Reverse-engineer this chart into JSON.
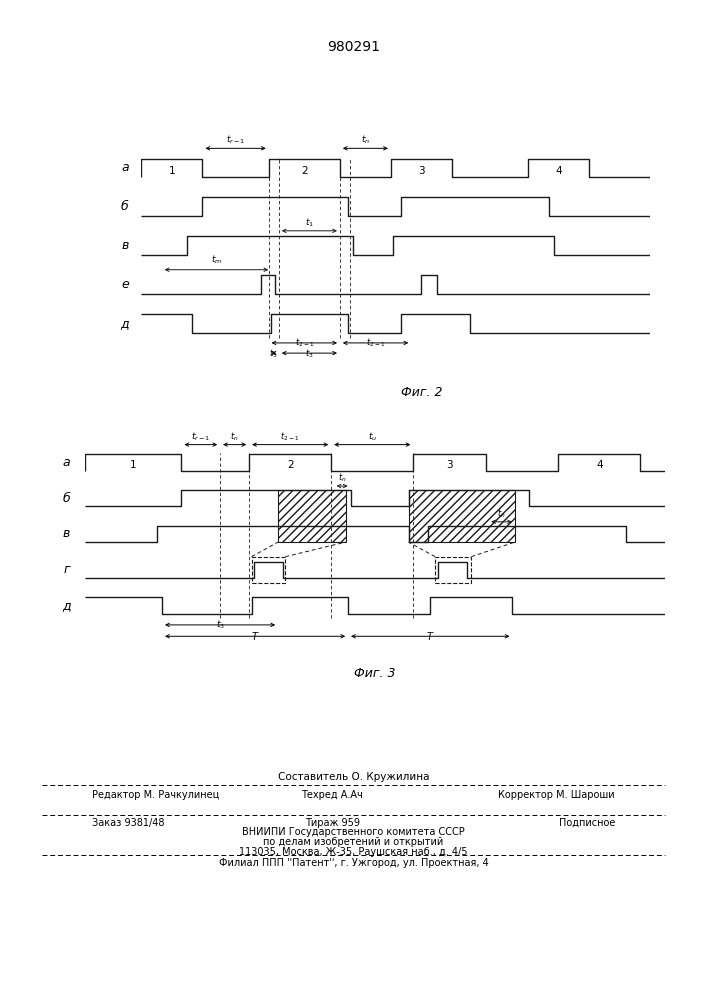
{
  "title_text": "980291",
  "fig2_label": "Фиг. 2",
  "fig3_label": "Фиг. 3",
  "line_color": "#1a1a1a",
  "footer_lines": [
    "Составитель О. Кружилина",
    "Редактор М. Рачкулинец",
    "Техред А.Ач",
    "Корректор М. Шароши",
    "Заказ 9381/48",
    "Тираж 959",
    "Подписное",
    "ВНИИПИ Государственного комитета СССР",
    "по делам изобретений и открытий",
    "113035, Москва, Ж-35, Раушская наб., д. 4/5",
    "Филиал ППП ''Патент'', г. Ужгород, ул. Проектная, 4"
  ]
}
